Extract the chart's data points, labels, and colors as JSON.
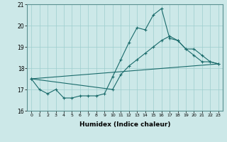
{
  "xlabel": "Humidex (Indice chaleur)",
  "ylabel": "",
  "xlim": [
    -0.5,
    23.5
  ],
  "ylim": [
    16,
    21
  ],
  "yticks": [
    16,
    17,
    18,
    19,
    20,
    21
  ],
  "xticks": [
    0,
    1,
    2,
    3,
    4,
    5,
    6,
    7,
    8,
    9,
    10,
    11,
    12,
    13,
    14,
    15,
    16,
    17,
    18,
    19,
    20,
    21,
    22,
    23
  ],
  "background_color": "#cce8e8",
  "grid_color": "#9ecece",
  "line_color": "#1a6b6b",
  "line1_x": [
    0,
    1,
    2,
    3,
    4,
    5,
    6,
    7,
    8,
    9,
    10,
    11,
    12,
    13,
    14,
    15,
    16,
    17,
    18,
    19,
    20,
    21,
    22,
    23
  ],
  "line1_y": [
    17.5,
    17.0,
    16.8,
    17.0,
    16.6,
    16.6,
    16.7,
    16.7,
    16.7,
    16.8,
    17.6,
    18.4,
    19.2,
    19.9,
    19.8,
    20.5,
    20.8,
    19.4,
    19.3,
    18.9,
    18.6,
    18.3,
    18.3,
    18.2
  ],
  "line2_x": [
    0,
    23
  ],
  "line2_y": [
    17.5,
    18.2
  ],
  "line3_x": [
    0,
    10,
    11,
    12,
    13,
    14,
    15,
    16,
    17,
    18,
    19,
    20,
    21,
    22,
    23
  ],
  "line3_y": [
    17.5,
    17.0,
    17.7,
    18.1,
    18.4,
    18.7,
    19.0,
    19.3,
    19.5,
    19.3,
    18.9,
    18.9,
    18.6,
    18.3,
    18.2
  ]
}
